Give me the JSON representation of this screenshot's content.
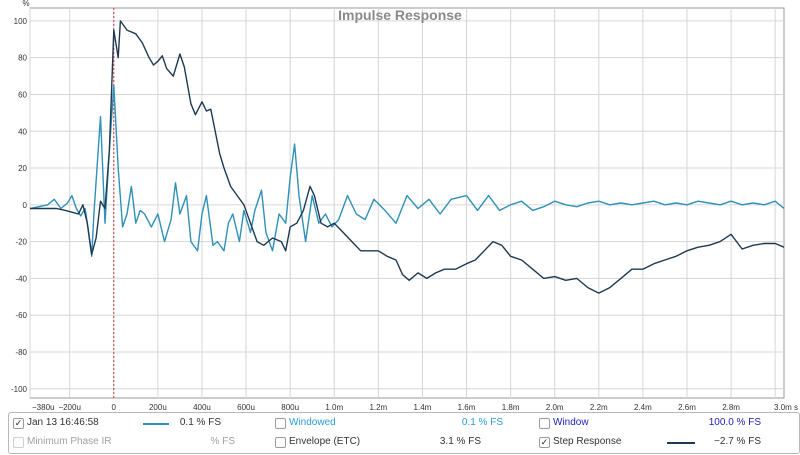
{
  "chart_data": {
    "type": "line",
    "title": "Impulse Response",
    "yunit": "%",
    "ylim": [
      -105,
      107
    ],
    "yticks": [
      100,
      80,
      60,
      40,
      20,
      0,
      -20,
      -40,
      -60,
      -80,
      -100
    ],
    "xtick_values": [
      -0.00038,
      -0.0002,
      0,
      0.0002,
      0.0004,
      0.0006,
      0.0008,
      0.001,
      0.0012,
      0.0014,
      0.0016,
      0.0018,
      0.002,
      0.0022,
      0.0024,
      0.0026,
      0.0028,
      0.003
    ],
    "xtick_labels": [
      "−380u",
      "−200u",
      "0",
      "200u",
      "400u",
      "600u",
      "800u",
      "1.0m",
      "1.2m",
      "1.4m",
      "1.6m",
      "1.8m",
      "2.0m",
      "2.2m",
      "2.4m",
      "2.6m",
      "2.8m",
      "3.0m s"
    ],
    "xlim": [
      -0.00038,
      0.00304
    ],
    "grid": true,
    "marker_x": 0,
    "series": [
      {
        "name": "Jan 13 16:46:58",
        "color": "#2f90b8",
        "points": [
          [
            -0.00038,
            -2
          ],
          [
            -0.00034,
            -1
          ],
          [
            -0.0003,
            0
          ],
          [
            -0.00027,
            3
          ],
          [
            -0.00024,
            -2
          ],
          [
            -0.00021,
            1
          ],
          [
            -0.00019,
            5
          ],
          [
            -0.00017,
            -2
          ],
          [
            -0.00015,
            -6
          ],
          [
            -0.00013,
            -2
          ],
          [
            -0.00012,
            -10
          ],
          [
            -0.0001,
            -28
          ],
          [
            -9e-05,
            -5
          ],
          [
            -6e-05,
            48
          ],
          [
            -4e-05,
            -10
          ],
          [
            -2e-05,
            30
          ],
          [
            0,
            65
          ],
          [
            2e-05,
            20
          ],
          [
            4e-05,
            -12
          ],
          [
            6e-05,
            -5
          ],
          [
            8e-05,
            10
          ],
          [
            0.0001,
            -10
          ],
          [
            0.00012,
            -3
          ],
          [
            0.00014,
            -5
          ],
          [
            0.00017,
            -12
          ],
          [
            0.0002,
            -5
          ],
          [
            0.00023,
            -20
          ],
          [
            0.00026,
            -8
          ],
          [
            0.00028,
            12
          ],
          [
            0.0003,
            -5
          ],
          [
            0.00033,
            5
          ],
          [
            0.00035,
            -20
          ],
          [
            0.00038,
            -25
          ],
          [
            0.0004,
            -5
          ],
          [
            0.00042,
            5
          ],
          [
            0.00045,
            -22
          ],
          [
            0.00047,
            -20
          ],
          [
            0.0005,
            -25
          ],
          [
            0.00052,
            -10
          ],
          [
            0.00054,
            -5
          ],
          [
            0.00057,
            -20
          ],
          [
            0.00059,
            -3
          ],
          [
            0.00062,
            -15
          ],
          [
            0.00064,
            -3
          ],
          [
            0.00067,
            8
          ],
          [
            0.00069,
            -15
          ],
          [
            0.00072,
            -25
          ],
          [
            0.00075,
            -5
          ],
          [
            0.00078,
            -10
          ],
          [
            0.0008,
            15
          ],
          [
            0.00082,
            33
          ],
          [
            0.00084,
            5
          ],
          [
            0.00087,
            -20
          ],
          [
            0.0009,
            5
          ],
          [
            0.00093,
            -10
          ],
          [
            0.00096,
            -5
          ],
          [
            0.00099,
            -12
          ],
          [
            0.00102,
            -8
          ],
          [
            0.00106,
            5
          ],
          [
            0.0011,
            -5
          ],
          [
            0.00114,
            -8
          ],
          [
            0.00118,
            3
          ],
          [
            0.00123,
            -3
          ],
          [
            0.00128,
            -10
          ],
          [
            0.00133,
            5
          ],
          [
            0.00138,
            -2
          ],
          [
            0.00143,
            3
          ],
          [
            0.00148,
            -5
          ],
          [
            0.00153,
            3
          ],
          [
            0.0016,
            5
          ],
          [
            0.00165,
            -3
          ],
          [
            0.0017,
            5
          ],
          [
            0.00175,
            -3
          ],
          [
            0.0018,
            0
          ],
          [
            0.00185,
            2
          ],
          [
            0.0019,
            -3
          ],
          [
            0.00195,
            -1
          ],
          [
            0.002,
            2
          ],
          [
            0.00205,
            0
          ],
          [
            0.0021,
            -1
          ],
          [
            0.00215,
            1
          ],
          [
            0.0022,
            2
          ],
          [
            0.00225,
            0
          ],
          [
            0.0023,
            1
          ],
          [
            0.00235,
            0
          ],
          [
            0.0024,
            1
          ],
          [
            0.00245,
            2
          ],
          [
            0.0025,
            0
          ],
          [
            0.00255,
            1
          ],
          [
            0.0026,
            0
          ],
          [
            0.00265,
            2
          ],
          [
            0.0027,
            1
          ],
          [
            0.00275,
            0
          ],
          [
            0.0028,
            2
          ],
          [
            0.00285,
            0
          ],
          [
            0.0029,
            1
          ],
          [
            0.00295,
            0
          ],
          [
            0.003,
            2
          ],
          [
            0.00304,
            -2
          ]
        ]
      },
      {
        "name": "Step Response",
        "color": "#1d3a52",
        "points": [
          [
            -0.00038,
            -2
          ],
          [
            -0.00032,
            -2
          ],
          [
            -0.00026,
            -2
          ],
          [
            -0.00022,
            -3
          ],
          [
            -0.00019,
            -4
          ],
          [
            -0.00016,
            -5
          ],
          [
            -0.00014,
            0
          ],
          [
            -0.00012,
            -10
          ],
          [
            -0.0001,
            -27
          ],
          [
            -8e-05,
            -18
          ],
          [
            -6e-05,
            2
          ],
          [
            -4e-05,
            -2
          ],
          [
            -2e-05,
            30
          ],
          [
            0,
            95
          ],
          [
            2e-05,
            80
          ],
          [
            3e-05,
            100
          ],
          [
            6e-05,
            95
          ],
          [
            0.0001,
            93
          ],
          [
            0.00013,
            88
          ],
          [
            0.00016,
            80
          ],
          [
            0.00018,
            76
          ],
          [
            0.0002,
            78
          ],
          [
            0.00022,
            81
          ],
          [
            0.00024,
            74
          ],
          [
            0.00027,
            70
          ],
          [
            0.0003,
            82
          ],
          [
            0.00032,
            75
          ],
          [
            0.00035,
            55
          ],
          [
            0.00037,
            49
          ],
          [
            0.0004,
            56
          ],
          [
            0.00042,
            51
          ],
          [
            0.00044,
            52
          ],
          [
            0.00046,
            40
          ],
          [
            0.00048,
            28
          ],
          [
            0.0005,
            20
          ],
          [
            0.00053,
            10
          ],
          [
            0.00056,
            5
          ],
          [
            0.00059,
            0
          ],
          [
            0.00062,
            -10
          ],
          [
            0.00065,
            -20
          ],
          [
            0.00068,
            -22
          ],
          [
            0.00072,
            -18
          ],
          [
            0.00076,
            -20
          ],
          [
            0.00078,
            -25
          ],
          [
            0.0008,
            -12
          ],
          [
            0.00083,
            -10
          ],
          [
            0.00086,
            -3
          ],
          [
            0.00089,
            10
          ],
          [
            0.00091,
            5
          ],
          [
            0.00094,
            -10
          ],
          [
            0.00097,
            -12
          ],
          [
            0.001,
            -10
          ],
          [
            0.00104,
            -15
          ],
          [
            0.00108,
            -20
          ],
          [
            0.00112,
            -25
          ],
          [
            0.00116,
            -25
          ],
          [
            0.0012,
            -25
          ],
          [
            0.00124,
            -28
          ],
          [
            0.00128,
            -30
          ],
          [
            0.00131,
            -38
          ],
          [
            0.00134,
            -41
          ],
          [
            0.00138,
            -37
          ],
          [
            0.00142,
            -40
          ],
          [
            0.00146,
            -37
          ],
          [
            0.0015,
            -35
          ],
          [
            0.00155,
            -35
          ],
          [
            0.0016,
            -32
          ],
          [
            0.00164,
            -30
          ],
          [
            0.00168,
            -25
          ],
          [
            0.00172,
            -20
          ],
          [
            0.00176,
            -22
          ],
          [
            0.0018,
            -28
          ],
          [
            0.00185,
            -30
          ],
          [
            0.0019,
            -35
          ],
          [
            0.00195,
            -40
          ],
          [
            0.002,
            -39
          ],
          [
            0.00205,
            -41
          ],
          [
            0.0021,
            -40
          ],
          [
            0.00215,
            -45
          ],
          [
            0.0022,
            -48
          ],
          [
            0.00225,
            -45
          ],
          [
            0.0023,
            -40
          ],
          [
            0.00235,
            -35
          ],
          [
            0.0024,
            -35
          ],
          [
            0.00245,
            -32
          ],
          [
            0.0025,
            -30
          ],
          [
            0.00255,
            -28
          ],
          [
            0.0026,
            -25
          ],
          [
            0.00265,
            -23
          ],
          [
            0.0027,
            -22
          ],
          [
            0.00275,
            -20
          ],
          [
            0.0028,
            -16
          ],
          [
            0.00285,
            -24
          ],
          [
            0.0029,
            -22
          ],
          [
            0.00295,
            -21
          ],
          [
            0.003,
            -21
          ],
          [
            0.00304,
            -23
          ]
        ]
      }
    ]
  },
  "legend": {
    "row1": {
      "measurement": {
        "label": "Jan 13 16:46:58",
        "value": "0.1 % FS",
        "checked": "✓"
      },
      "windowed": {
        "label": "Windowed",
        "value": "0.1 % FS"
      },
      "window": {
        "label": "Window",
        "value": "100.0 % FS"
      }
    },
    "row2": {
      "minimum_phase": {
        "label": "Minimum Phase IR",
        "value": "% FS"
      },
      "envelope": {
        "label": "Envelope (ETC)",
        "value": "3.1 % FS"
      },
      "step": {
        "label": "Step Response",
        "value": "−2.7 % FS",
        "checked": "✓"
      }
    }
  }
}
